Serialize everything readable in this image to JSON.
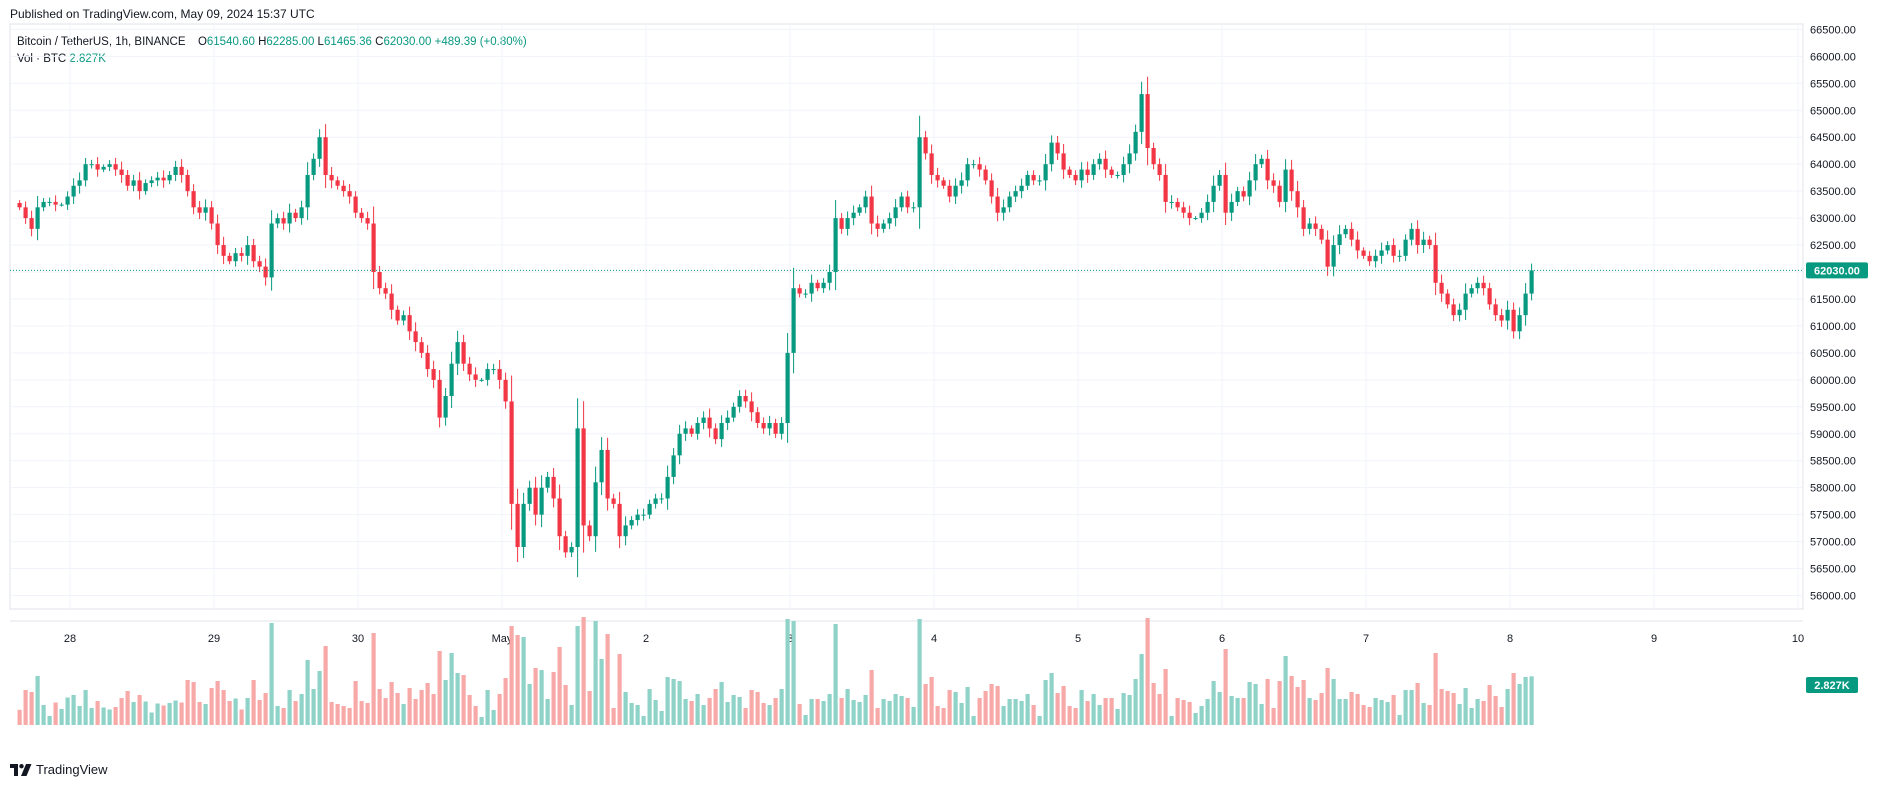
{
  "header": {
    "published": "Published on TradingView.com, May 09, 2024 15:37 UTC"
  },
  "legend": {
    "symbol": "Bitcoin / TetherUS, 1h, BINANCE",
    "open_label": "O",
    "open": "61540.60",
    "high_label": "H",
    "high": "62285.00",
    "low_label": "L",
    "low": "61465.36",
    "close_label": "C",
    "close": "62030.00",
    "change": "+489.39 (+0.80%)",
    "vol_label": "Vol · BTC",
    "vol": "2.827K"
  },
  "footer": {
    "brand": "TradingView"
  },
  "colors": {
    "up": "#089981",
    "down": "#f23645",
    "up_vol": "#8fd3c8",
    "down_vol": "#f7a9a7",
    "grid": "#f0f3fa",
    "axis_text": "#131722"
  },
  "chart_data": {
    "type": "candlestick",
    "symbol": "Bitcoin / TetherUS",
    "interval": "1h",
    "exchange": "BINANCE",
    "last_price": 62030.0,
    "last_price_label": "62030.00",
    "last_volume_label": "2.827K",
    "y_range": [
      55750,
      66600
    ],
    "y_ticks": [
      56000,
      56500,
      57000,
      57500,
      58000,
      58500,
      59000,
      59500,
      60000,
      60500,
      61000,
      61500,
      62000,
      62500,
      63000,
      63500,
      64000,
      64500,
      65000,
      65500,
      66000,
      66500
    ],
    "x_ticks": [
      {
        "label": "28",
        "day": 0
      },
      {
        "label": "29",
        "day": 1
      },
      {
        "label": "30",
        "day": 2
      },
      {
        "label": "May",
        "day": 3
      },
      {
        "label": "2",
        "day": 4
      },
      {
        "label": "3",
        "day": 5
      },
      {
        "label": "4",
        "day": 6
      },
      {
        "label": "5",
        "day": 7
      },
      {
        "label": "6",
        "day": 8
      },
      {
        "label": "7",
        "day": 9
      },
      {
        "label": "8",
        "day": 10
      },
      {
        "label": "9",
        "day": 11
      },
      {
        "label": "10",
        "day": 12
      }
    ],
    "start_offset_days": -0.35,
    "bar_days": 0.041666667,
    "closes": [
      63200,
      63000,
      62800,
      63200,
      63300,
      63300,
      63250,
      63250,
      63400,
      63600,
      63700,
      64000,
      64000,
      63900,
      63950,
      64000,
      63900,
      63800,
      63600,
      63700,
      63500,
      63650,
      63700,
      63750,
      63700,
      63800,
      63950,
      63800,
      63500,
      63200,
      63100,
      63200,
      62900,
      62500,
      62300,
      62200,
      62350,
      62300,
      62500,
      62200,
      62100,
      61900,
      62900,
      63000,
      62900,
      63100,
      63000,
      63200,
      63800,
      64100,
      64500,
      63800,
      63700,
      63600,
      63500,
      63400,
      63100,
      63000,
      62900,
      62000,
      61700,
      61600,
      61300,
      61100,
      61200,
      60900,
      60700,
      60500,
      60200,
      60000,
      59300,
      59700,
      60300,
      60700,
      60300,
      60100,
      60000,
      60000,
      60200,
      60200,
      60000,
      59600,
      57700,
      56900,
      57700,
      58000,
      57500,
      58000,
      58200,
      57800,
      57100,
      56800,
      56900,
      59100,
      57300,
      57100,
      58100,
      58700,
      57800,
      57700,
      57100,
      57300,
      57400,
      57500,
      57500,
      57700,
      57800,
      57800,
      58200,
      58600,
      59000,
      59100,
      59000,
      59200,
      59300,
      59100,
      58900,
      59200,
      59300,
      59500,
      59700,
      59600,
      59400,
      59200,
      59100,
      59200,
      59000,
      59200,
      60500,
      61700,
      61600,
      61600,
      61800,
      61700,
      61800,
      62000,
      63000,
      62800,
      63000,
      63100,
      63200,
      63400,
      62900,
      62800,
      62900,
      63000,
      63200,
      63400,
      63200,
      63200,
      64500,
      64200,
      63800,
      63700,
      63600,
      63400,
      63600,
      63700,
      64000,
      64000,
      63900,
      63700,
      63400,
      63100,
      63200,
      63400,
      63500,
      63600,
      63800,
      63700,
      63700,
      64000,
      64400,
      64200,
      63900,
      63800,
      63700,
      63900,
      63800,
      64000,
      64100,
      63900,
      63800,
      63800,
      64000,
      64200,
      64600,
      65300,
      64300,
      64000,
      63800,
      63300,
      63300,
      63200,
      63100,
      63000,
      63000,
      63100,
      63300,
      63600,
      63800,
      63100,
      63300,
      63500,
      63400,
      63700,
      64000,
      64100,
      63700,
      63600,
      63300,
      63900,
      63500,
      63200,
      62800,
      62900,
      62800,
      62600,
      62100,
      62500,
      62700,
      62800,
      62600,
      62400,
      62300,
      62200,
      62300,
      62400,
      62500,
      62300,
      62300,
      62600,
      62800,
      62500,
      62600,
      62500,
      61800,
      61600,
      61400,
      61200,
      61300,
      61600,
      61700,
      61800,
      61700,
      61400,
      61200,
      61100,
      61300,
      60900,
      61200,
      61600,
      62030
    ]
  }
}
